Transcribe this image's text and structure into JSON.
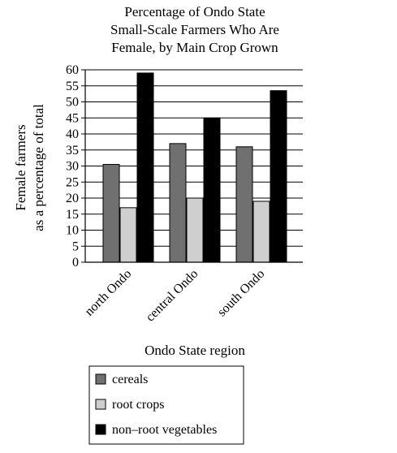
{
  "chart_data": {
    "type": "bar",
    "title_lines": [
      "Percentage of Ondo State",
      "Small-Scale Farmers Who Are",
      "Female, by Main Crop Grown"
    ],
    "ylabel_lines": [
      "Female farmers",
      "as a percentage of total"
    ],
    "xlabel": "Ondo State region",
    "categories": [
      "north Ondo",
      "central Ondo",
      "south Ondo"
    ],
    "ylim": [
      0,
      60
    ],
    "yticks": [
      0,
      5,
      10,
      15,
      20,
      25,
      30,
      35,
      40,
      45,
      50,
      55,
      60
    ],
    "grid": true,
    "legend_position": "bottom",
    "series": [
      {
        "name": "cereals",
        "color": "#707070",
        "values": [
          30.5,
          37,
          36
        ]
      },
      {
        "name": "root crops",
        "color": "#cfcfcf",
        "values": [
          17,
          20,
          19
        ]
      },
      {
        "name": "non–root vegetables",
        "color": "#000000",
        "values": [
          59,
          45,
          53.5
        ]
      }
    ]
  }
}
